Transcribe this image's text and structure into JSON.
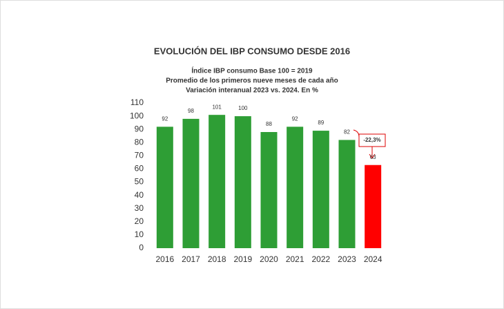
{
  "chart_data": {
    "type": "bar",
    "title": "EVOLUCIÓN DEL IBP CONSUMO DESDE 2016",
    "subtitle": [
      "Índice IBP consumo Base 100 = 2019",
      "Promedio de los primeros nueve meses de cada año",
      "Variación interanual 2023 vs. 2024. En %"
    ],
    "categories": [
      "2016",
      "2017",
      "2018",
      "2019",
      "2020",
      "2021",
      "2022",
      "2023",
      "2024"
    ],
    "values": [
      92,
      98,
      101,
      100,
      88,
      92,
      89,
      82,
      63
    ],
    "colors": [
      "#2e9e35",
      "#2e9e35",
      "#2e9e35",
      "#2e9e35",
      "#2e9e35",
      "#2e9e35",
      "#2e9e35",
      "#2e9e35",
      "#ff0000"
    ],
    "annotation": "-22,3%",
    "ylim": [
      0,
      110
    ],
    "yticks": [
      0,
      10,
      20,
      30,
      40,
      50,
      60,
      70,
      80,
      90,
      100,
      110
    ],
    "grid": false
  }
}
